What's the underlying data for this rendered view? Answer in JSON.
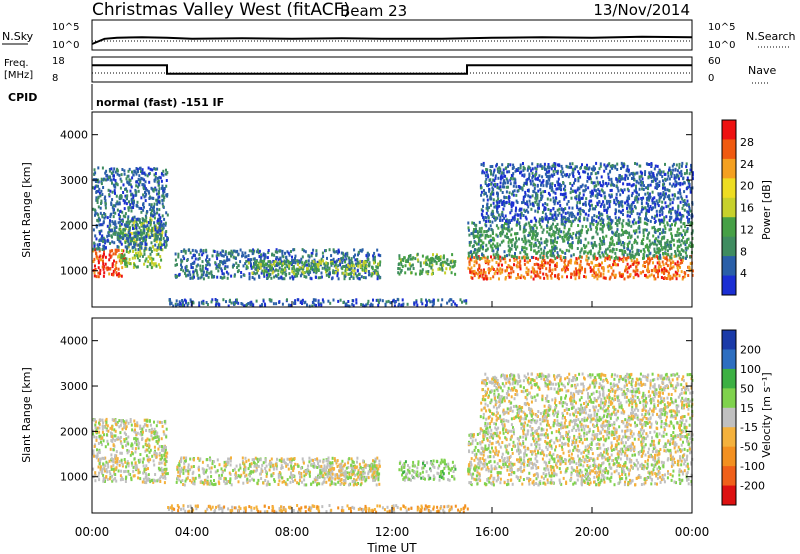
{
  "header": {
    "site": "Christmas Valley West (fitACF)",
    "beam": "Beam 23",
    "date": "13/Nov/2014"
  },
  "nsky_panel": {
    "left_label": "N.Sky",
    "left_ticks": [
      "10^5",
      "10^0"
    ],
    "right_label": "N.Search",
    "right_ticks": [
      "10^5",
      "10^0"
    ]
  },
  "freq_panel": {
    "left_label_1": "Freq.",
    "left_label_2": "[MHz]",
    "left_ticks": [
      "18",
      "8"
    ],
    "right_label": "Nave",
    "right_ticks": [
      "60",
      "0"
    ]
  },
  "cpid_panel": {
    "label": "CPID",
    "text": "normal (fast) -151 IF"
  },
  "power_panel": {
    "ylabel": "Slant Range [km]",
    "colorbar_label": "Power [dB]",
    "colorbar_ticks": [
      "28",
      "24",
      "20",
      "16",
      "12",
      "8",
      "4"
    ],
    "colors": [
      "#ee1111",
      "#f05a10",
      "#f4a020",
      "#eedd22",
      "#c7d12c",
      "#46a046",
      "#3f8c60",
      "#2a5fa8",
      "#1b2fd3"
    ]
  },
  "velocity_panel": {
    "ylabel": "Slant Range [km]",
    "colorbar_label": "Velocity [m s⁻¹]",
    "colorbar_ticks": [
      "200",
      "100",
      "50",
      "15",
      "-15",
      "-50",
      "-100",
      "-200"
    ],
    "colors": [
      "#1a3aa8",
      "#2d6ec0",
      "#3cb043",
      "#7fd24d",
      "#c0c0c0",
      "#f4b13c",
      "#f39020",
      "#f0601a",
      "#dd1111"
    ]
  },
  "x_axis": {
    "label": "Time UT",
    "ticks": [
      "00:00",
      "04:00",
      "08:00",
      "12:00",
      "16:00",
      "20:00",
      "00:00"
    ]
  },
  "chart_data": [
    {
      "type": "line",
      "title": "Christmas Valley West (fitACF) Beam 23 13/Nov/2014",
      "ylabel": "N.Sky",
      "xlim": [
        0,
        24
      ],
      "x": [
        0,
        0.5,
        1,
        2,
        3,
        4,
        6,
        8,
        10,
        12,
        14,
        16,
        18,
        20,
        22,
        24
      ],
      "values": [
        0,
        1.0,
        1.2,
        1.3,
        1.2,
        1.0,
        1.1,
        1.0,
        1.1,
        1.0,
        1.0,
        1.2,
        1.3,
        1.2,
        1.4,
        1.3
      ]
    },
    {
      "type": "line",
      "ylabel": "Freq. [MHz]",
      "ylim": [
        8,
        18
      ],
      "x": [
        0,
        3,
        3,
        15,
        15,
        24
      ],
      "values": [
        15,
        15,
        11,
        11,
        15,
        15
      ]
    },
    {
      "type": "heatmap",
      "title": "Power",
      "xlabel": "Time UT",
      "ylabel": "Slant Range [km]",
      "xlim": [
        0,
        24
      ],
      "ylim": [
        200,
        4500
      ],
      "colorbar": "Power [dB]",
      "colorbar_range": [
        0,
        32
      ],
      "regions": [
        {
          "t0": 0.0,
          "t1": 1.3,
          "r0": 900,
          "r1": 1500,
          "level": 28
        },
        {
          "t0": 1.0,
          "t1": 2.8,
          "r0": 1100,
          "r1": 2200,
          "level": 14
        },
        {
          "t0": 0.0,
          "t1": 3.0,
          "r0": 1500,
          "r1": 3300,
          "level": 6
        },
        {
          "t0": 3.3,
          "t1": 11.5,
          "r0": 850,
          "r1": 1500,
          "level": 6
        },
        {
          "t0": 6.0,
          "t1": 11.5,
          "r0": 950,
          "r1": 1250,
          "level": 13
        },
        {
          "t0": 12.2,
          "t1": 14.5,
          "r0": 950,
          "r1": 1400,
          "level": 12
        },
        {
          "t0": 15.0,
          "t1": 24.0,
          "r0": 850,
          "r1": 1350,
          "level": 26
        },
        {
          "t0": 15.0,
          "t1": 24.0,
          "r0": 1300,
          "r1": 2100,
          "level": 10
        },
        {
          "t0": 15.5,
          "t1": 24.0,
          "r0": 2100,
          "r1": 3400,
          "level": 5
        },
        {
          "t0": 3.0,
          "t1": 15.0,
          "r0": 250,
          "r1": 400,
          "level": 5
        }
      ]
    },
    {
      "type": "heatmap",
      "title": "Velocity",
      "xlabel": "Time UT",
      "ylabel": "Slant Range [km]",
      "xlim": [
        0,
        24
      ],
      "ylim": [
        200,
        4500
      ],
      "colorbar": "Velocity [m s⁻¹]",
      "colorbar_range": [
        -200,
        200
      ],
      "regions": [
        {
          "t0": 0.0,
          "t1": 3.0,
          "r0": 900,
          "r1": 2300,
          "level": 0
        },
        {
          "t0": 3.3,
          "t1": 11.5,
          "r0": 850,
          "r1": 1450,
          "level": 5
        },
        {
          "t0": 9.0,
          "t1": 11.5,
          "r0": 950,
          "r1": 1300,
          "level": 0
        },
        {
          "t0": 12.2,
          "t1": 14.5,
          "r0": 950,
          "r1": 1400,
          "level": 30
        },
        {
          "t0": 15.0,
          "t1": 24.0,
          "r0": 850,
          "r1": 2000,
          "level": 0
        },
        {
          "t0": 15.5,
          "t1": 24.0,
          "r0": 2000,
          "r1": 3300,
          "level": 0
        },
        {
          "t0": 3.0,
          "t1": 15.0,
          "r0": 250,
          "r1": 400,
          "level": -40
        }
      ]
    }
  ]
}
